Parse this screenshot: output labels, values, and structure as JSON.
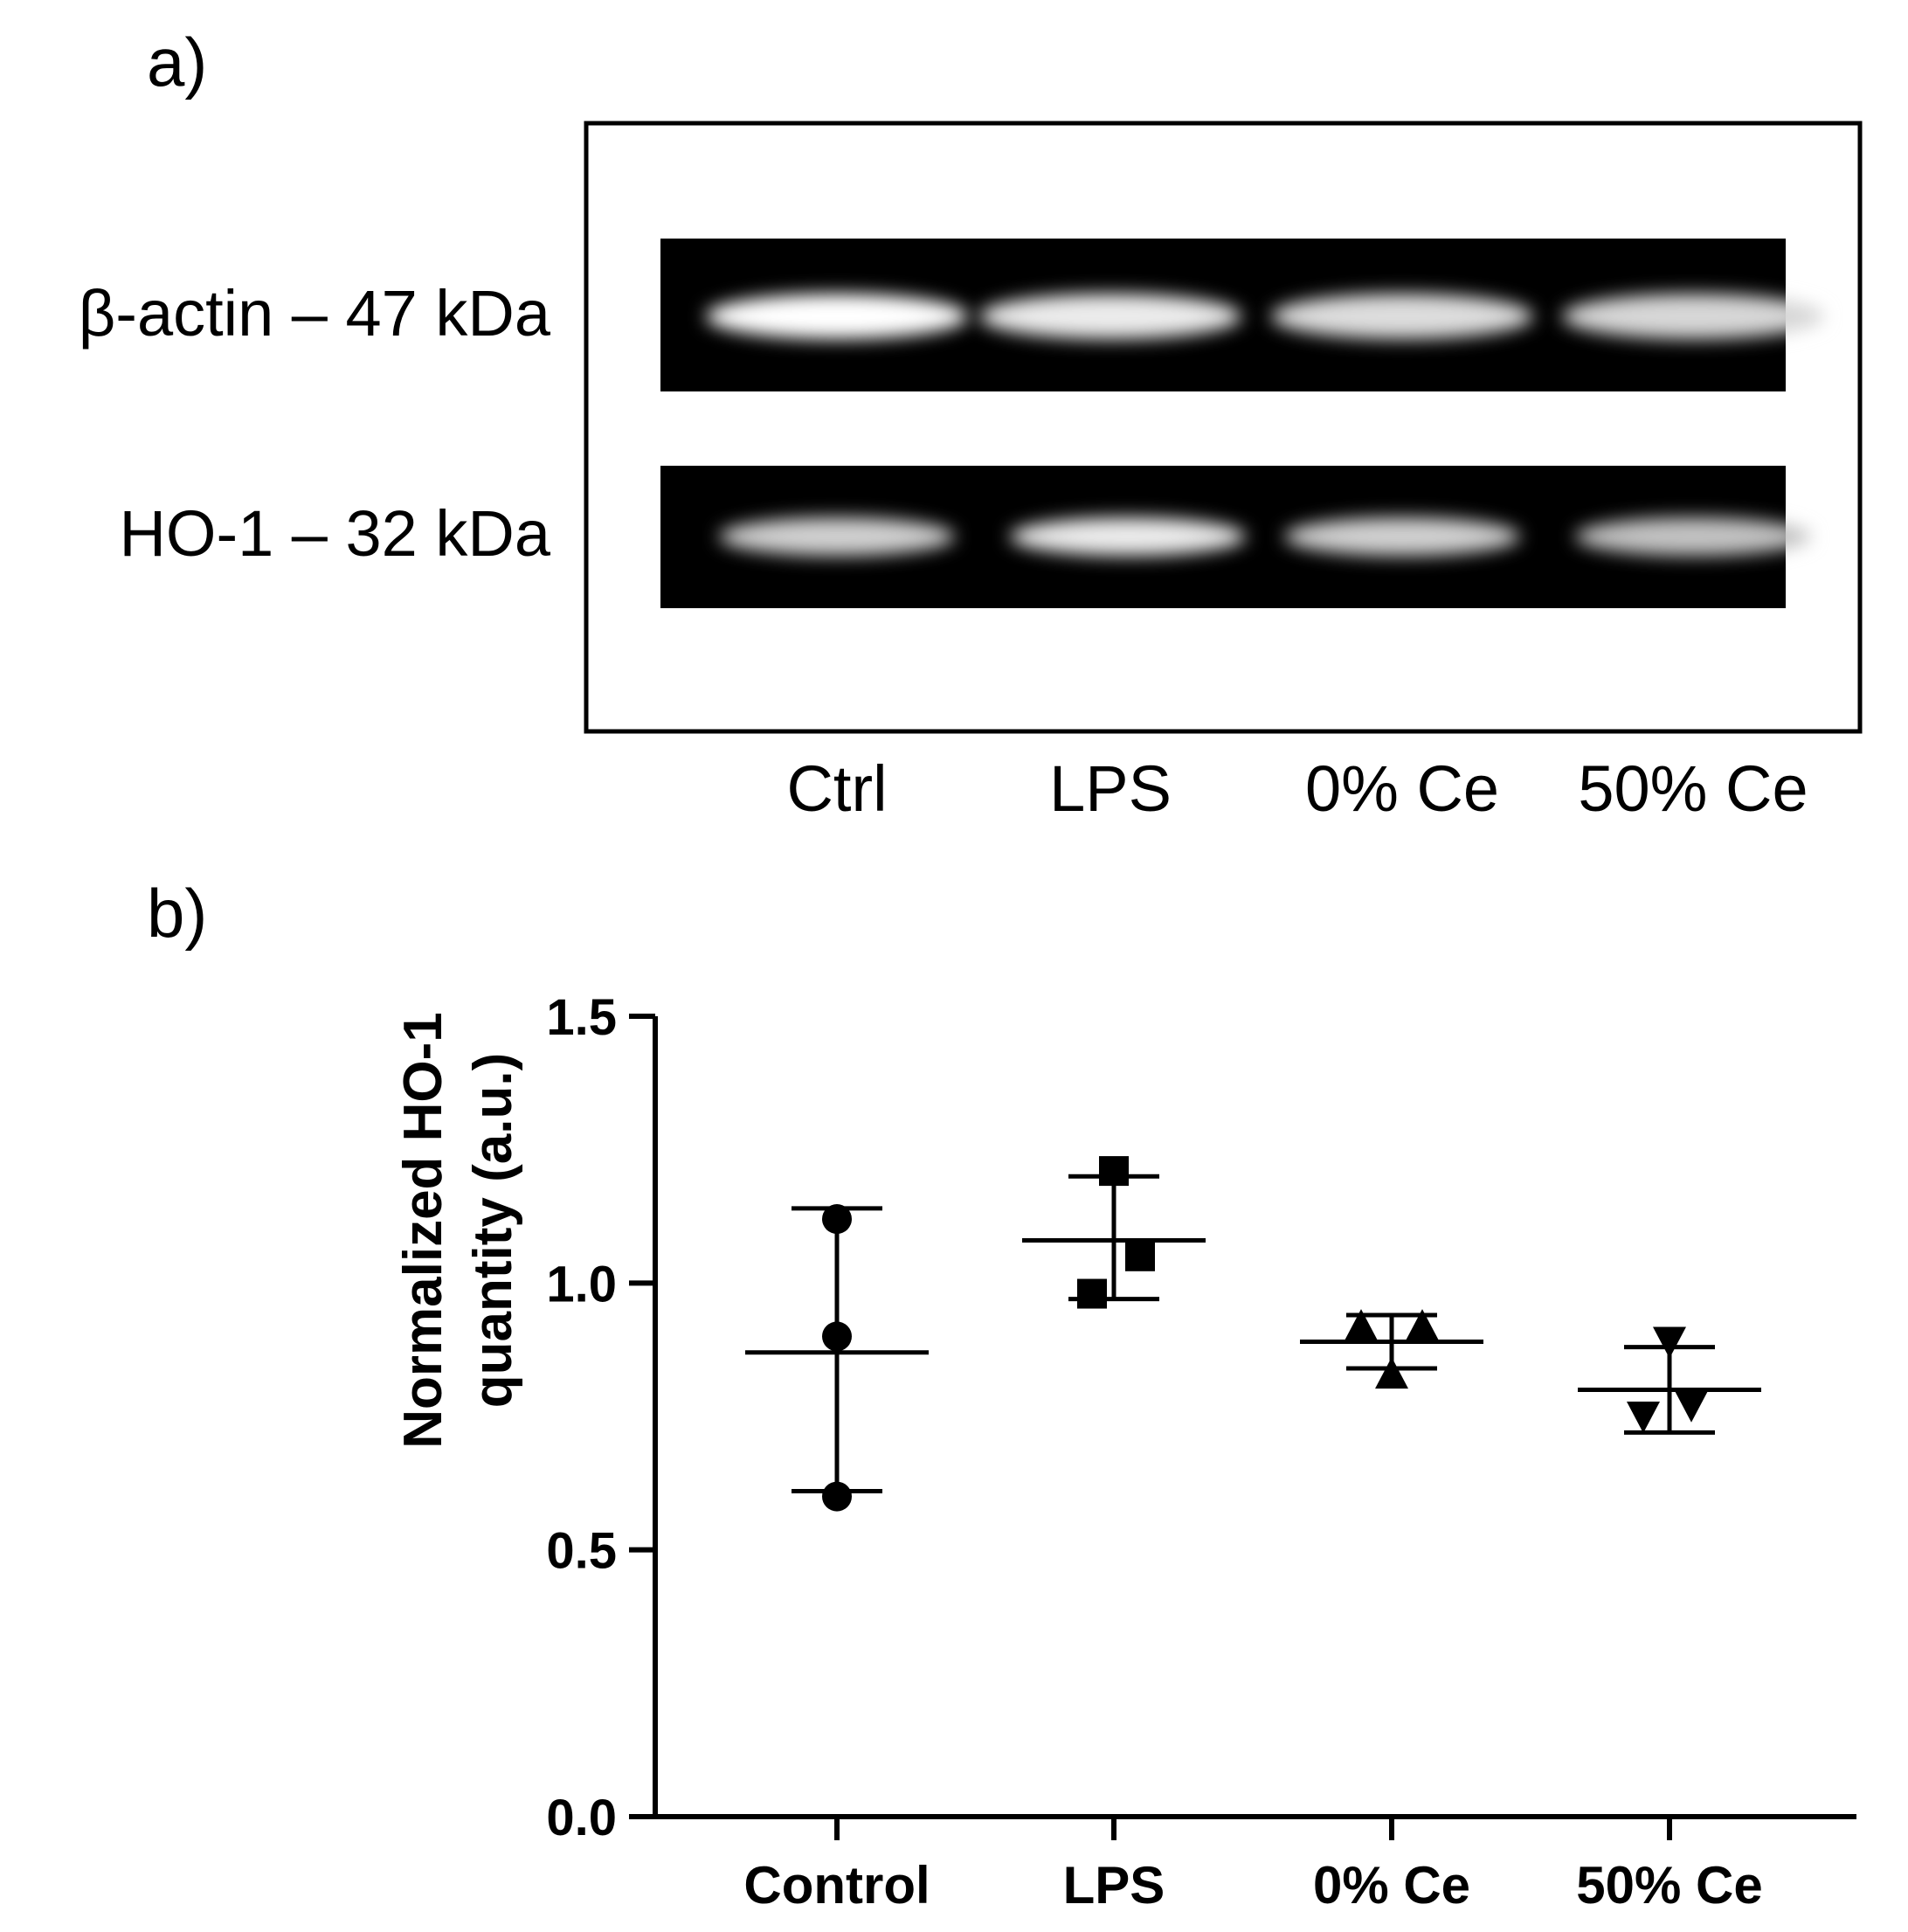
{
  "panel_a": {
    "label": "a)",
    "row_labels": [
      "β-actin – 47 kDa",
      "HO-1 – 32 kDa"
    ],
    "lane_labels": [
      "Ctrl",
      "LPS",
      "0% Ce",
      "50% Ce"
    ],
    "band_intensity": {
      "beta_actin": [
        1.0,
        0.85,
        0.75,
        0.7
      ],
      "ho1": [
        0.65,
        0.85,
        0.65,
        0.55
      ]
    }
  },
  "panel_b": {
    "label": "b)"
  },
  "chart_data": {
    "type": "scatter",
    "title": "",
    "xlabel": "",
    "ylabel": "Normalized HO-1 quantity (a.u.)",
    "ylabel_lines": [
      "Normalized HO-1",
      "quantity (a.u.)"
    ],
    "categories": [
      "Control",
      "LPS",
      "0% Ce",
      "50% Ce"
    ],
    "ylim": [
      0.0,
      1.5
    ],
    "yticks": [
      0.0,
      0.5,
      1.0,
      1.5
    ],
    "ytick_labels": [
      "0.0",
      "0.5",
      "1.0",
      "1.5"
    ],
    "grid": false,
    "series": [
      {
        "category": "Control",
        "marker": "circle",
        "points": [
          1.12,
          0.9,
          0.6
        ],
        "mean": 0.87,
        "sd_low": 0.61,
        "sd_high": 1.14
      },
      {
        "category": "LPS",
        "marker": "square",
        "points": [
          1.21,
          1.05,
          0.98
        ],
        "mean": 1.08,
        "sd_low": 0.97,
        "sd_high": 1.2
      },
      {
        "category": "0% Ce",
        "marker": "triangle-up",
        "points": [
          0.92,
          0.92,
          0.83
        ],
        "mean": 0.89,
        "sd_low": 0.84,
        "sd_high": 0.94
      },
      {
        "category": "50% Ce",
        "marker": "triangle-down",
        "points": [
          0.89,
          0.77,
          0.75
        ],
        "mean": 0.8,
        "sd_low": 0.72,
        "sd_high": 0.88
      }
    ]
  }
}
